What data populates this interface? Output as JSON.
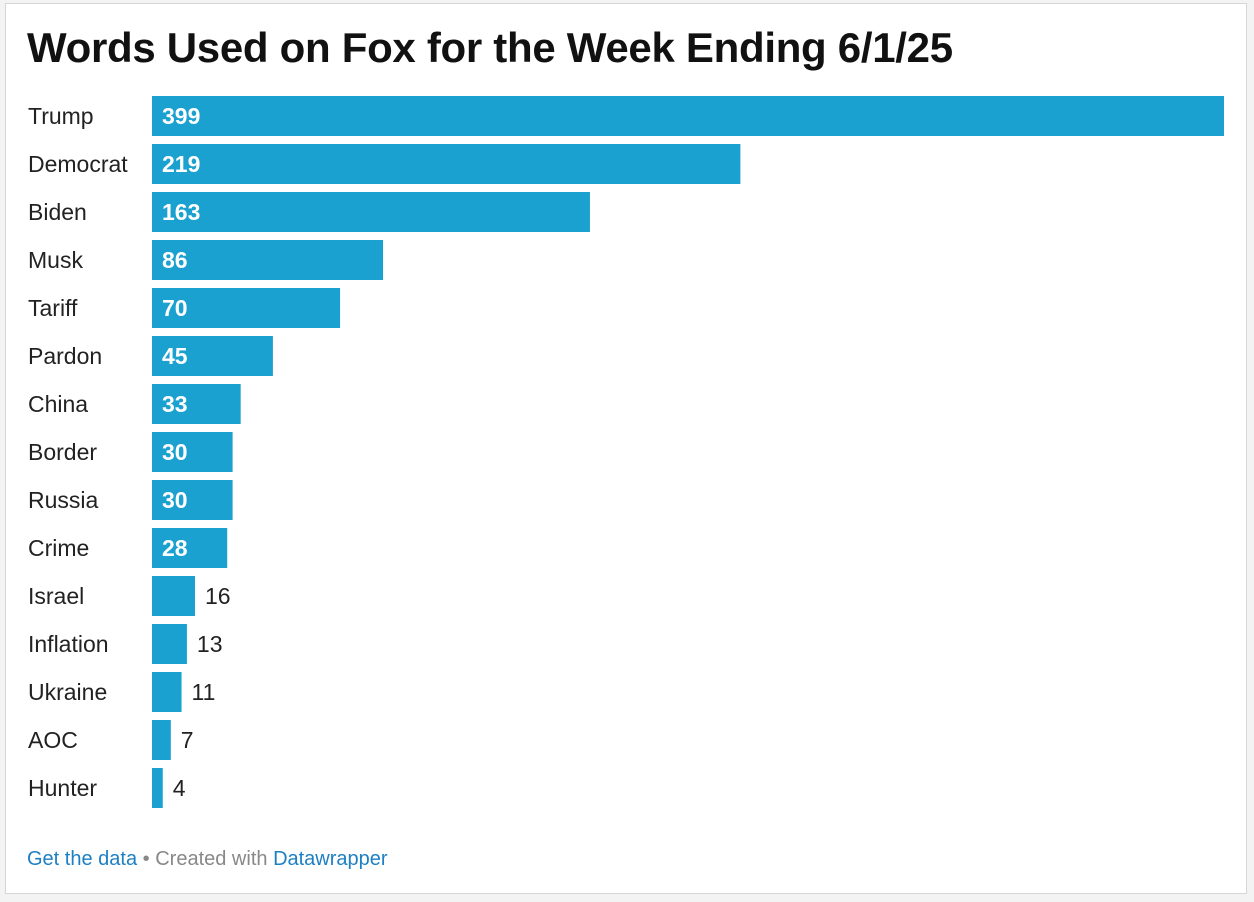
{
  "chart_data": {
    "type": "bar",
    "orientation": "horizontal",
    "title": "Words Used on Fox for the Week Ending 6/1/25",
    "categories": [
      "Trump",
      "Democrat",
      "Biden",
      "Musk",
      "Tariff",
      "Pardon",
      "China",
      "Border",
      "Russia",
      "Crime",
      "Israel",
      "Inflation",
      "Ukraine",
      "AOC",
      "Hunter"
    ],
    "values": [
      399,
      219,
      163,
      86,
      70,
      45,
      33,
      30,
      30,
      28,
      16,
      13,
      11,
      7,
      4
    ],
    "xlim": [
      0,
      399
    ],
    "grid": false,
    "legend": "none",
    "colors": {
      "bar": "#1ba1cf",
      "label_inside": "#ffffff",
      "label_outside": "#222222"
    }
  },
  "footer": {
    "get_data": "Get the data",
    "separator": "•",
    "created_with": "Created with",
    "datawrapper": "Datawrapper"
  }
}
